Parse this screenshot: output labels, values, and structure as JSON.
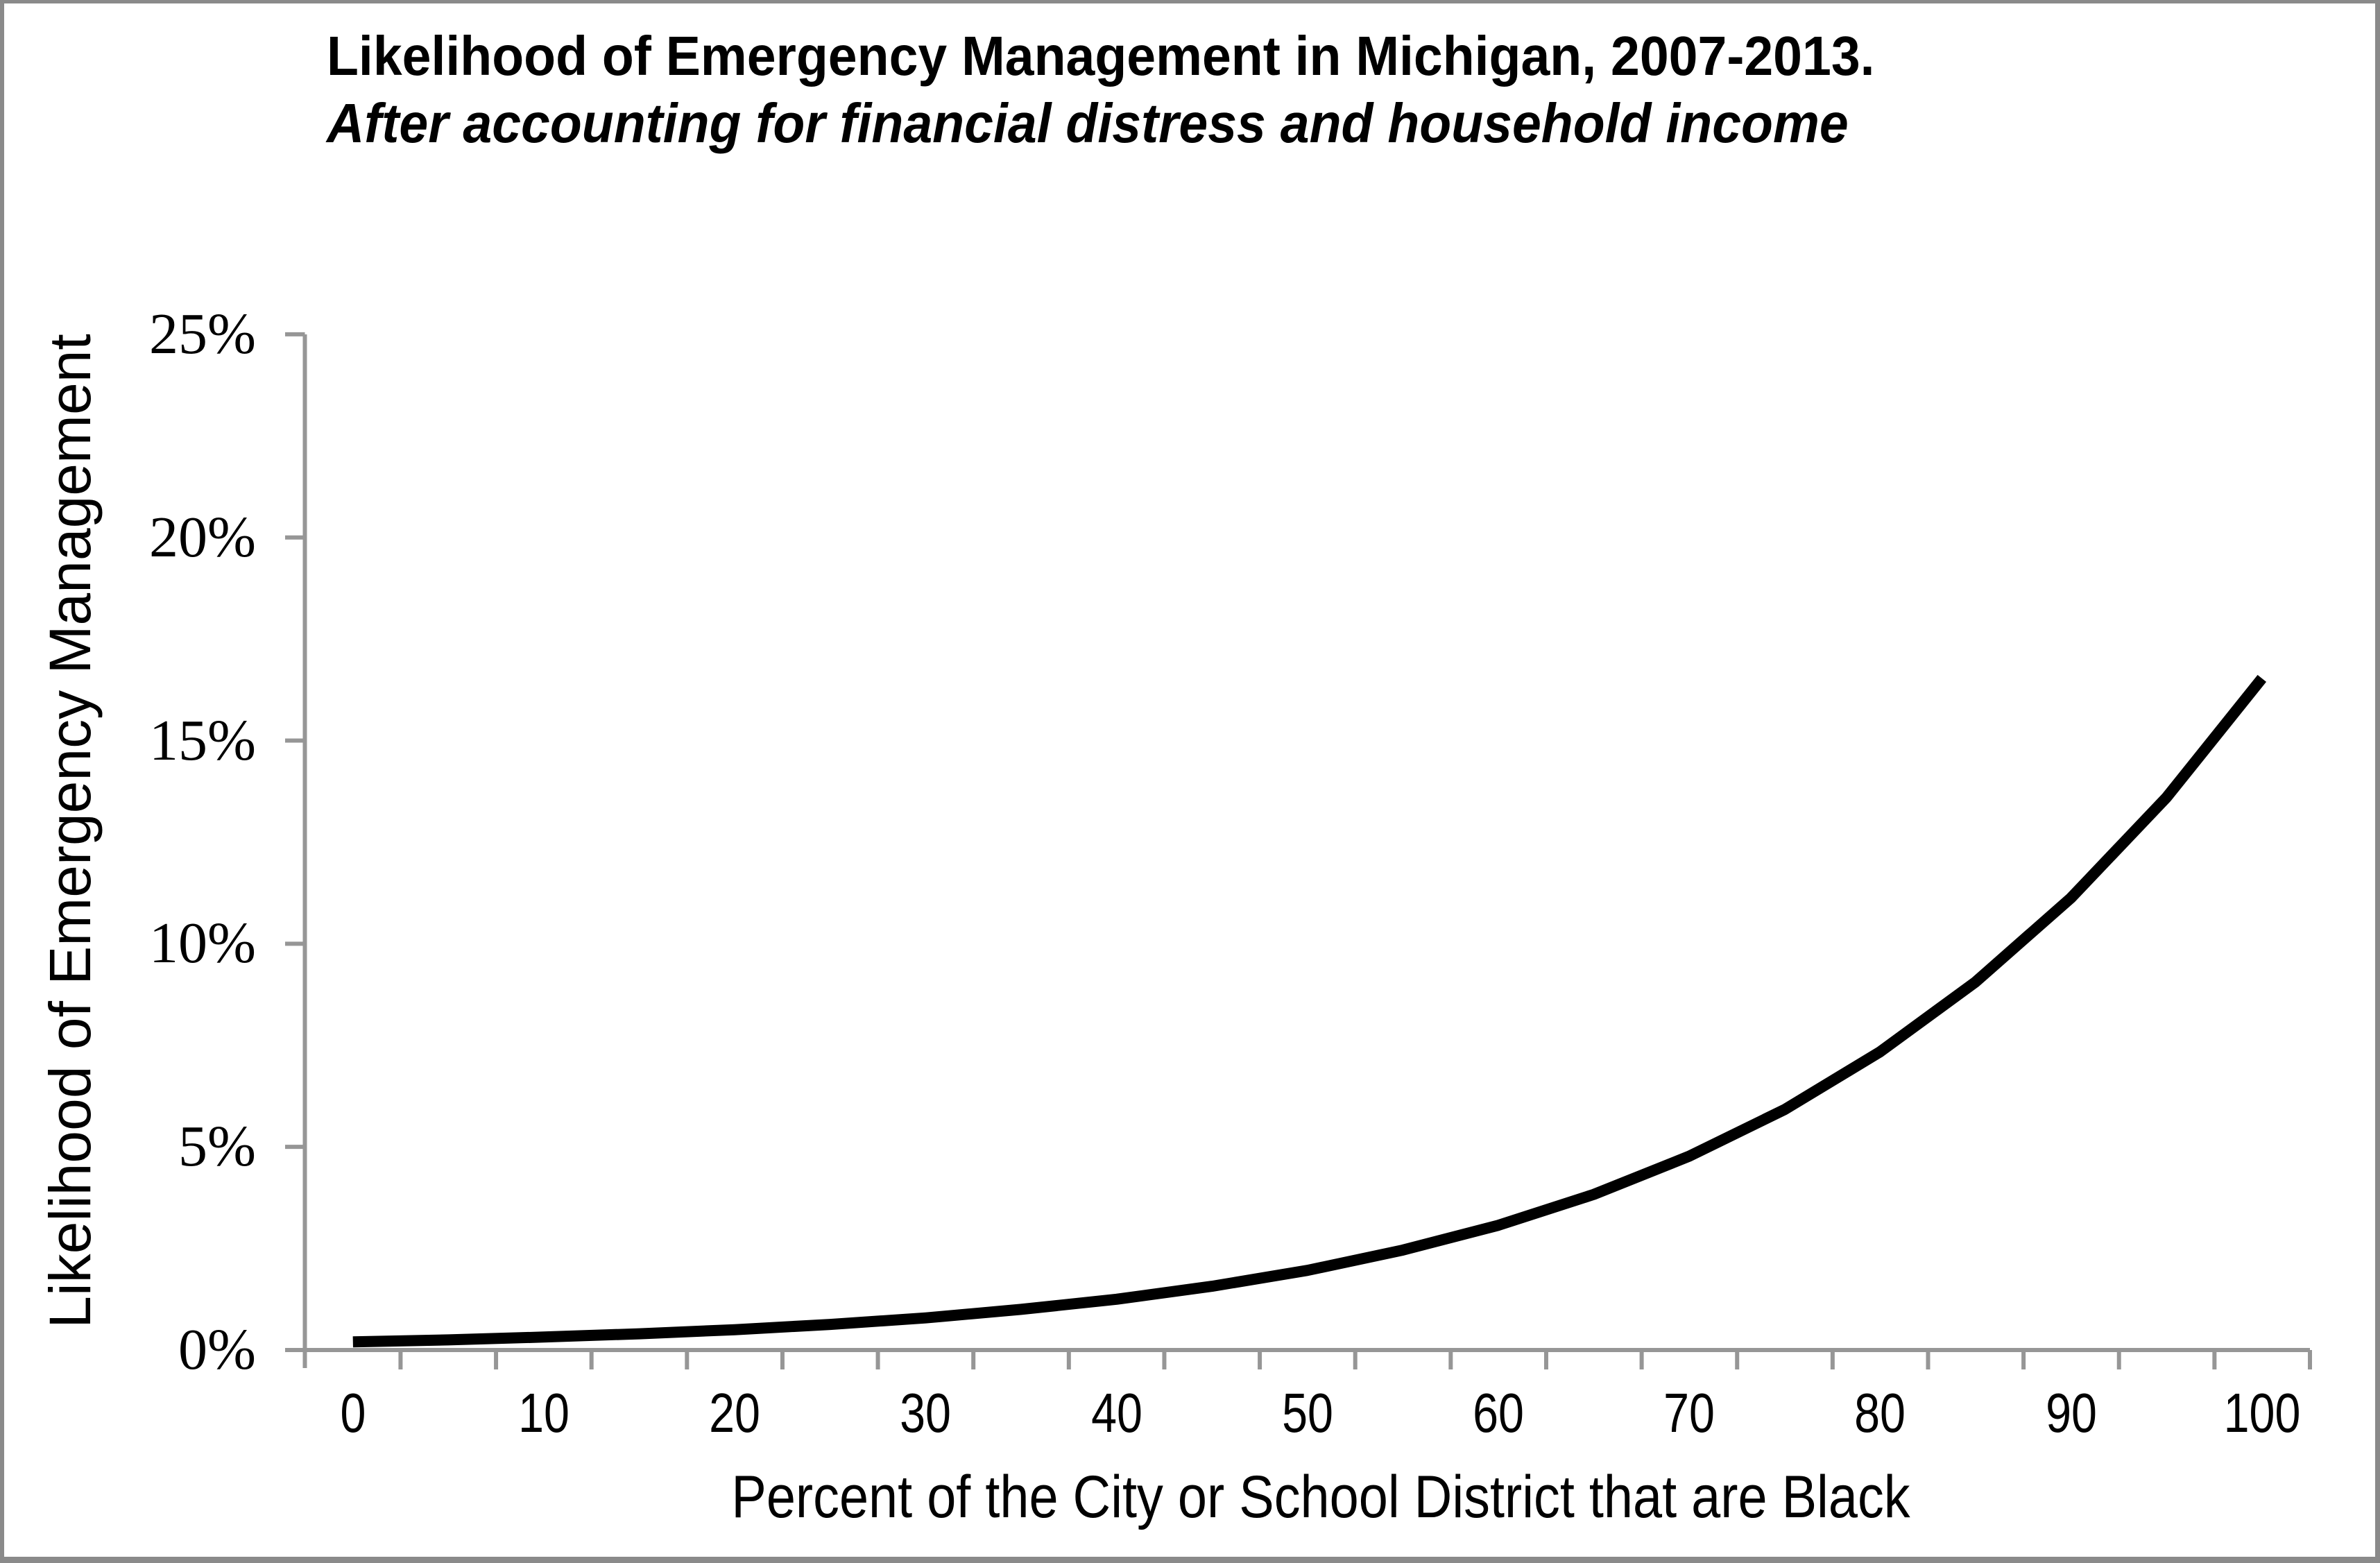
{
  "window": {
    "border_color": "#8a8a8a",
    "background_color": "#ffffff"
  },
  "chart_data": {
    "type": "line",
    "title": "Likelihood of Emergency Management in Michigan, 2007-2013.",
    "subtitle": "After accounting for financial distress and household income",
    "xlabel": "Percent of the City or School District that are Black",
    "ylabel": "Likelihood of Emergency Management",
    "x_tick_labels": [
      "0",
      "10",
      "20",
      "30",
      "40",
      "50",
      "60",
      "70",
      "80",
      "90",
      "100"
    ],
    "x_tick_values": [
      0,
      10,
      20,
      30,
      40,
      50,
      60,
      70,
      80,
      90,
      100
    ],
    "y_tick_labels": [
      "0%",
      "5%",
      "10%",
      "15%",
      "20%",
      "25%"
    ],
    "y_tick_values_pct": [
      0,
      5,
      10,
      15,
      20,
      25
    ],
    "xlim": [
      0,
      100
    ],
    "ylim_pct": [
      0,
      25
    ],
    "grid": false,
    "legend": "none",
    "minor_x_tick_step": 5,
    "axis_color": "#969696",
    "line_color": "#000000",
    "series": [
      {
        "x": [
          0,
          5,
          10,
          15,
          20,
          25,
          30,
          35,
          40,
          45,
          50,
          55,
          60,
          65,
          70,
          75,
          80,
          85,
          90,
          95,
          100
        ],
        "y_pct": [
          0.2,
          0.25,
          0.32,
          0.4,
          0.5,
          0.63,
          0.79,
          1.0,
          1.25,
          1.57,
          1.96,
          2.46,
          3.07,
          3.83,
          4.77,
          5.92,
          7.34,
          9.06,
          11.13,
          13.6,
          16.53
        ]
      }
    ]
  }
}
